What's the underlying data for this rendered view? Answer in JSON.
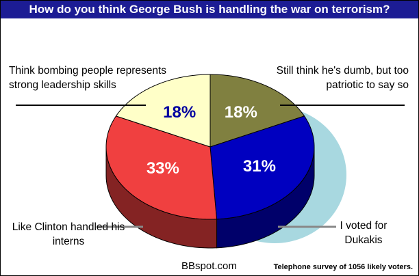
{
  "chart_data": {
    "type": "pie",
    "title": "How do you think George Bush is handling the war on terrorism?",
    "categories": [
      "Still think he's dumb, but too patriotic to say so",
      "I voted for Dukakis",
      "Like Clinton handled his interns",
      "Think bombing people represents strong leadership skills"
    ],
    "values": [
      18,
      31,
      33,
      18
    ],
    "value_labels": [
      "18%",
      "31%",
      "33%",
      "18%"
    ],
    "colors": [
      "#808040",
      "#0000c0",
      "#f04040",
      "#ffffc8"
    ],
    "label_colors": [
      "#ffffff",
      "#ffffff",
      "#ffffff",
      "#0000a0"
    ],
    "source": "BBspot.com",
    "note": "Telephone survey of 1056 likely voters."
  }
}
